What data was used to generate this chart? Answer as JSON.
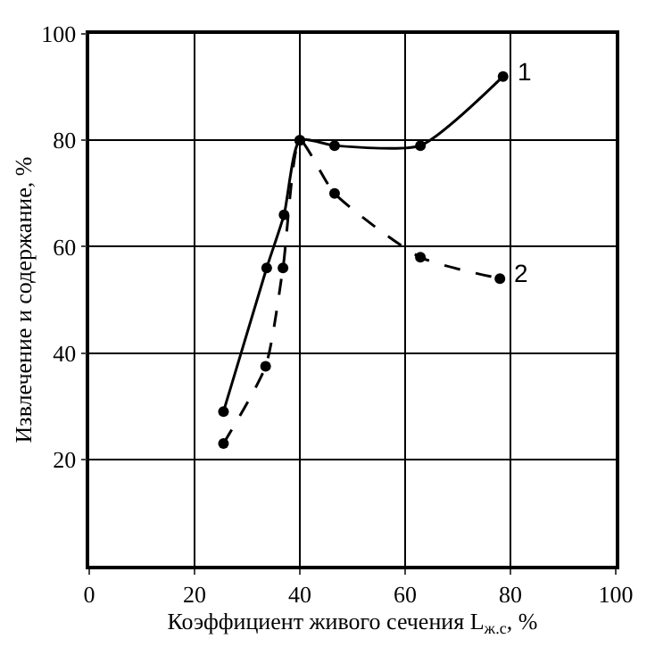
{
  "chart_data": {
    "type": "line",
    "xlabel": "Коэффициент живого сечения L$_{ж.с}$, %",
    "ylabel": "Извлечение и содержание, %",
    "xlim": [
      0,
      100
    ],
    "xticks": [
      0,
      20,
      40,
      60,
      80,
      100
    ],
    "ylim": [
      0,
      100
    ],
    "yticks": [
      20,
      40,
      60,
      80,
      100
    ],
    "grid": true,
    "legend": false,
    "marker": "circle",
    "series": [
      {
        "name": "1",
        "color": "#000000",
        "line_style": "solid",
        "x": [
          25.5,
          33.7,
          37,
          40,
          46.6,
          62.9,
          78.6
        ],
        "values": [
          29,
          56,
          66,
          80,
          79,
          79,
          92
        ]
      },
      {
        "name": "2",
        "color": "#000000",
        "line_style": "dashed",
        "x": [
          25.5,
          33.5,
          36.8,
          40,
          46.6,
          62.9,
          78
        ],
        "values": [
          23,
          37.5,
          56,
          80,
          70,
          58,
          54
        ]
      }
    ]
  }
}
